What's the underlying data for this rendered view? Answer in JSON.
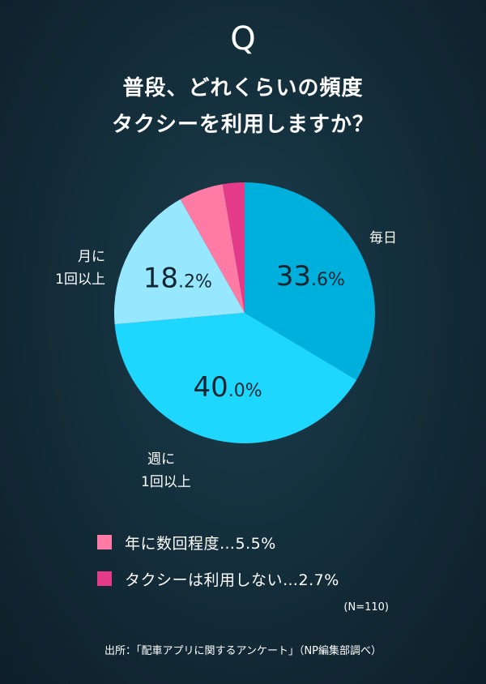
{
  "header": {
    "q_mark": "Q",
    "title_line1": "普段、どれくらいの頻度",
    "title_line2": "タクシーを利用しますか？"
  },
  "chart_data": {
    "type": "pie",
    "unit": "%",
    "slices": [
      {
        "label": "毎日",
        "value": 33.6,
        "value_text_int": "33",
        "value_text_dec": ".6%",
        "color": "#00b0dc"
      },
      {
        "label": "週に 1回以上",
        "value": 40.0,
        "value_text_int": "40",
        "value_text_dec": ".0%",
        "color": "#1dd7ff"
      },
      {
        "label": "月に 1回以上",
        "value": 18.2,
        "value_text_int": "18",
        "value_text_dec": ".2%",
        "color": "#97e8ff"
      },
      {
        "label": "年に数回程度",
        "value": 5.5,
        "color": "#ff7ba5"
      },
      {
        "label": "タクシーは利用しない",
        "value": 2.7,
        "color": "#e43a8a"
      }
    ]
  },
  "labels": {
    "daily": "毎日",
    "weekly_l1": "週に",
    "weekly_l2": "1回以上",
    "monthly_l1": "月に",
    "monthly_l2": "1回以上"
  },
  "legend": {
    "yearly_text": "年に数回程度…5.5%",
    "never_text": "タクシーは利用しない…2.7%",
    "yearly_color": "#ff7ba5",
    "never_color": "#e43a8a"
  },
  "note": "(N=110)",
  "source": "出所：「配車アプリに関するアンケート」（NP編集部調べ）"
}
